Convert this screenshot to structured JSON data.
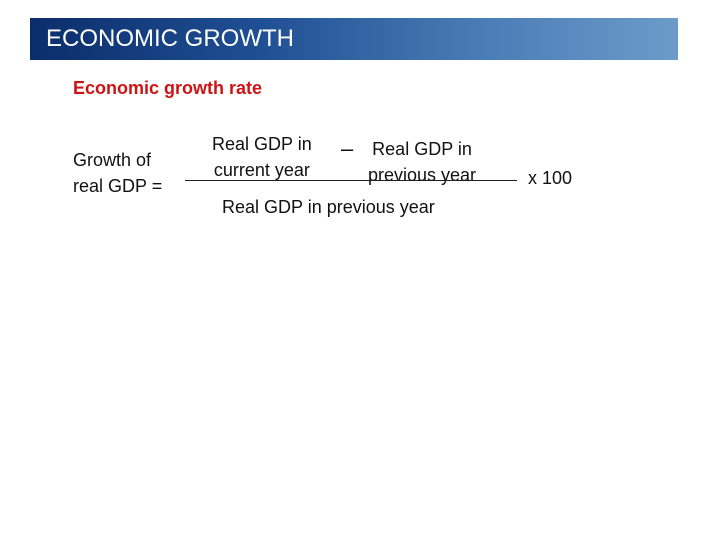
{
  "slide": {
    "title": "ECONOMIC GROWTH",
    "subtitle": "Economic growth rate"
  },
  "formula": {
    "lhs_line1": "Growth of",
    "lhs_line2": "real GDP =",
    "numerator_left_line1": "Real GDP in",
    "numerator_left_line2": "current year",
    "operator": "–",
    "numerator_right_line1": "Real GDP in",
    "numerator_right_line2": "previous year",
    "denominator": "Real GDP in previous year",
    "multiplier": "x 100"
  },
  "colors": {
    "title_bar_start": "#0b2d6b",
    "title_bar_end": "#6d9bc9",
    "title_text": "#ffffff",
    "subtitle": "#cc1414",
    "body_text": "#111111"
  }
}
